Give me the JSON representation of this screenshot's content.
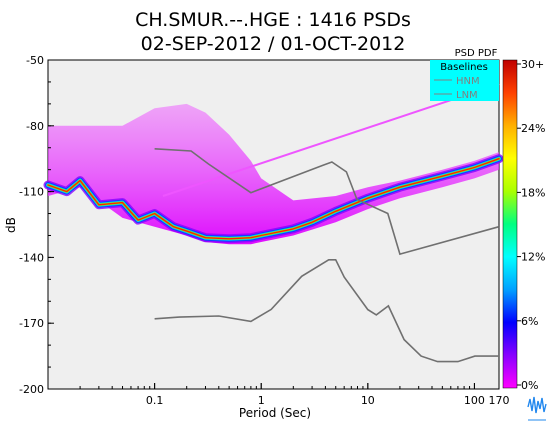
{
  "chart_data": {
    "type": "heatmap",
    "title_line1": "CH.SMUR.--.HGE : 1416 PSDs",
    "title_line2": "02-SEP-2012 / 01-OCT-2012",
    "xlabel": "Period (Sec)",
    "ylabel": "dB",
    "x_scale": "log",
    "xlim": [
      0.01,
      170
    ],
    "ylim": [
      -200,
      -50
    ],
    "x_ticks": [
      {
        "value": 0.1,
        "label": "0.1"
      },
      {
        "value": 1,
        "label": "1"
      },
      {
        "value": 10,
        "label": "10"
      },
      {
        "value": 100,
        "label": "100"
      },
      {
        "value": 170,
        "label": "170"
      }
    ],
    "y_ticks": [
      {
        "value": -50,
        "label": "-50"
      },
      {
        "value": -80,
        "label": "-80"
      },
      {
        "value": -110,
        "label": "-110"
      },
      {
        "value": -140,
        "label": "-140"
      },
      {
        "value": -170,
        "label": "-170"
      },
      {
        "value": -200,
        "label": "-200"
      }
    ],
    "legend": {
      "title": "Baselines",
      "placement": "top-right",
      "entries": [
        "HNM",
        "LNM"
      ],
      "background": "#00ffff"
    },
    "colorbar": {
      "label": "PSD PDF",
      "ticks": [
        "30+",
        "24%",
        "18%",
        "12%",
        "6%",
        "0%"
      ],
      "colors": [
        "#ff00ff",
        "#8800ff",
        "#0000ff",
        "#00a0ff",
        "#00ffff",
        "#00ff80",
        "#aaff00",
        "#ffff00",
        "#ffb000",
        "#ff4000",
        "#c00000"
      ]
    },
    "series": [
      {
        "name": "HNM",
        "x": [
          0.1,
          0.22,
          0.32,
          0.8,
          3.8,
          4.6,
          6.3,
          7.9,
          15.4,
          20,
          170
        ],
        "y": [
          -90.5,
          -91.5,
          -97.4,
          -110.5,
          -98.0,
          -96.5,
          -101.0,
          -113.5,
          -120.0,
          -138.5,
          -126.0
        ]
      },
      {
        "name": "LNM",
        "x": [
          0.1,
          0.17,
          0.4,
          0.8,
          1.24,
          2.4,
          4.3,
          5.0,
          6.0,
          10.0,
          12.0,
          15.6,
          21.9,
          31.6,
          45.0,
          70.0,
          101.0,
          154.0,
          170.0
        ],
        "y": [
          -168.0,
          -167.2,
          -166.7,
          -169.2,
          -163.7,
          -148.6,
          -141.1,
          -141.1,
          -149.0,
          -163.8,
          -166.2,
          -162.1,
          -177.5,
          -185.0,
          -187.5,
          -187.5,
          -185.0,
          -185.0,
          -185.0
        ]
      },
      {
        "name": "pdf-mode",
        "x": [
          0.01,
          0.015,
          0.02,
          0.03,
          0.05,
          0.07,
          0.1,
          0.15,
          0.2,
          0.3,
          0.5,
          0.8,
          1,
          2,
          3,
          5,
          10,
          20,
          50,
          100,
          170
        ],
        "y": [
          -107,
          -110,
          -105,
          -116,
          -115,
          -123,
          -120,
          -126,
          -128,
          -131,
          -131.5,
          -131,
          -130,
          -127,
          -124,
          -119,
          -113,
          -108,
          -103,
          -99,
          -95
        ]
      },
      {
        "name": "pdf-upper",
        "x": [
          0.01,
          0.02,
          0.05,
          0.1,
          0.2,
          0.3,
          0.5,
          0.8,
          1,
          2,
          5,
          10,
          20,
          50,
          100,
          170
        ],
        "y": [
          -80,
          -80,
          -80,
          -72,
          -70,
          -74,
          -84,
          -96,
          -104,
          -114,
          -112,
          -108,
          -105,
          -100,
          -96,
          -92
        ]
      },
      {
        "name": "pdf-lower",
        "x": [
          0.01,
          0.02,
          0.05,
          0.1,
          0.2,
          0.3,
          0.5,
          0.8,
          1,
          2,
          5,
          10,
          20,
          50,
          100,
          170
        ],
        "y": [
          -112,
          -108,
          -122,
          -126,
          -130,
          -133,
          -134,
          -134,
          -133,
          -130,
          -124,
          -118,
          -113,
          -108,
          -104,
          -100
        ]
      },
      {
        "name": "outlier-line",
        "x": [
          0.12,
          170
        ],
        "y": [
          -112,
          -61
        ]
      }
    ]
  }
}
